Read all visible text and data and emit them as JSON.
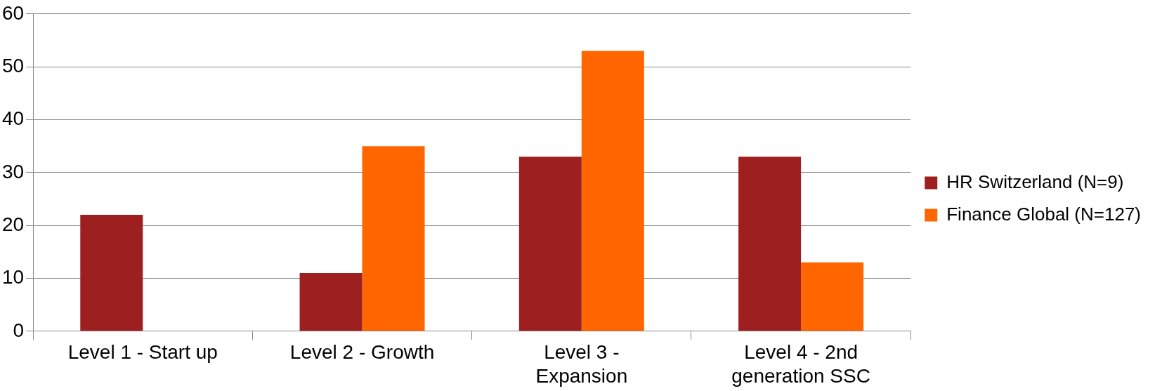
{
  "chart_data": {
    "type": "bar",
    "categories": [
      "Level 1 - Start up",
      "Level 2 - Growth",
      "Level 3 - Expansion",
      "Level 4 - 2nd generation SSC"
    ],
    "series": [
      {
        "name": "HR Switzerland (N=9)",
        "color": "#9e1f20",
        "values": [
          22,
          11,
          33,
          33
        ]
      },
      {
        "name": "Finance Global (N=127)",
        "color": "#ff6600",
        "values": [
          0,
          35,
          53,
          13
        ]
      }
    ],
    "ylim": [
      0,
      60
    ],
    "yticks": [
      0,
      10,
      20,
      30,
      40,
      50,
      60
    ],
    "grid": "y",
    "legend": "right"
  }
}
